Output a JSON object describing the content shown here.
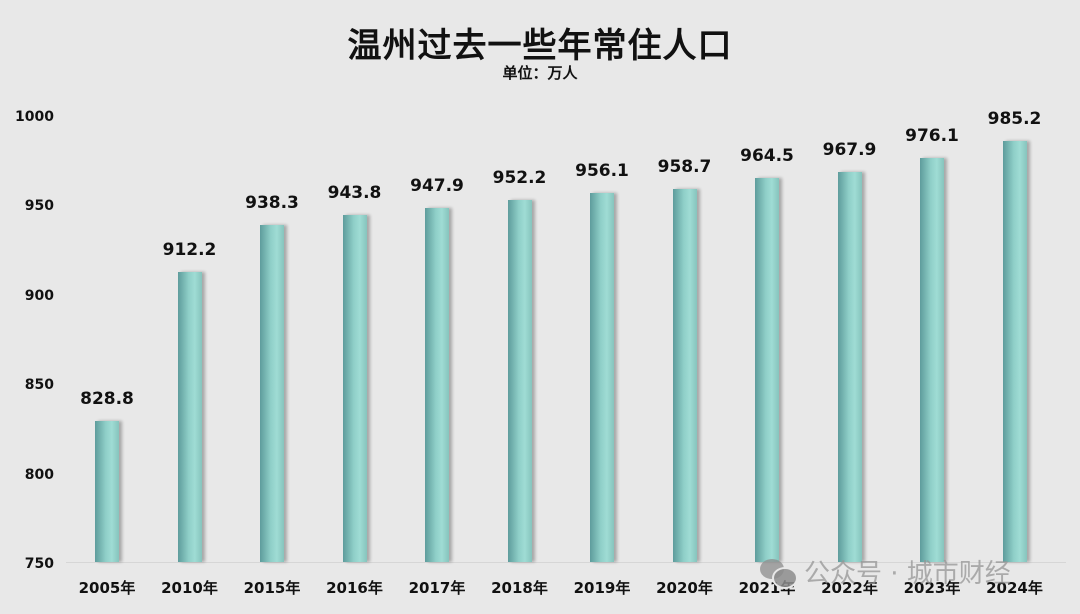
{
  "chart_data": {
    "type": "bar",
    "title": "温州过去一些年常住人口",
    "subtitle": "单位：万人",
    "xlabel": "",
    "ylabel": "",
    "ylim": [
      750,
      1000
    ],
    "yticks": [
      750,
      800,
      850,
      900,
      950,
      1000
    ],
    "grid": false,
    "legend": null,
    "categories": [
      "2005年",
      "2010年",
      "2015年",
      "2016年",
      "2017年",
      "2018年",
      "2019年",
      "2020年",
      "2021年",
      "2022年",
      "2023年",
      "2024年"
    ],
    "values": [
      828.8,
      912.2,
      938.3,
      943.8,
      947.9,
      952.2,
      956.1,
      958.7,
      964.5,
      967.9,
      976.1,
      985.2
    ],
    "value_labels": [
      "828.8",
      "912.2",
      "938.3",
      "943.8",
      "947.9",
      "952.2",
      "956.1",
      "958.7",
      "964.5",
      "967.9",
      "976.1",
      "985.2"
    ],
    "bar_color": "#8fcfc8",
    "background": "#e8e8e8"
  },
  "watermark": {
    "text": "公众号 · 城市财经",
    "icon": "wechat-icon"
  }
}
